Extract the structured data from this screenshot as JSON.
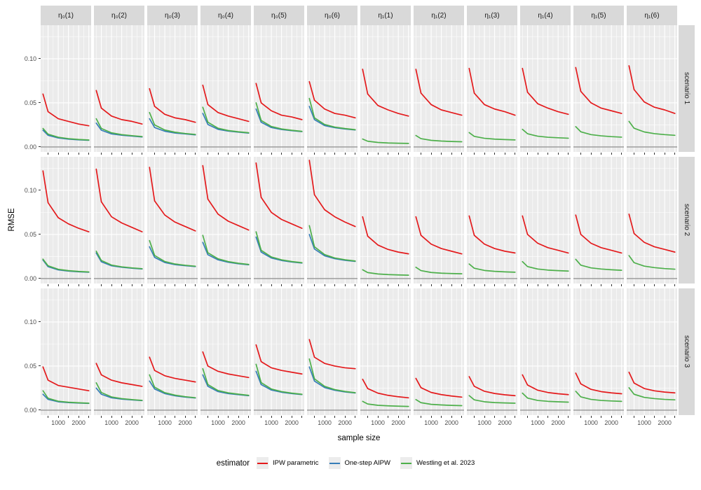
{
  "legend": {
    "title": "estimator",
    "entries": [
      {
        "label": "IPW parametric",
        "color": "#E41A1C"
      },
      {
        "label": "One-step AIPW",
        "color": "#377EB8"
      },
      {
        "label": "Westling et al. 2023",
        "color": "#4DAF4A"
      }
    ]
  },
  "chart_data": {
    "type": "line",
    "title": "",
    "xlabel": "sample size",
    "ylabel": "RMSE",
    "x": [
      250,
      500,
      1000,
      1500,
      2000,
      2500
    ],
    "x_range": [
      137,
      2613
    ],
    "y_range": [
      -0.0056,
      0.138
    ],
    "x_ticks": [
      500,
      1000,
      1500,
      2000,
      2500
    ],
    "x_minor": [
      250,
      750,
      1250,
      1750,
      2250
    ],
    "y_major": [
      0,
      0.05,
      0.1
    ],
    "y_minor": [
      0.025,
      0.075,
      0.125
    ],
    "x_tick_labels": [
      {
        "value": 1000,
        "label": "1000"
      },
      {
        "value": 2000,
        "label": "2000"
      }
    ],
    "y_ticks": [
      {
        "value": 0,
        "label": "0.00"
      },
      {
        "value": 0.05,
        "label": "0.05"
      },
      {
        "value": 0.1,
        "label": "0.10"
      }
    ],
    "zero_line": 0,
    "colors": {
      "panel_bg": "#EBEBEB",
      "grid": "#FFFFFF",
      "strip_bg": "#D9D9D9",
      "zero_line": "#808080"
    },
    "facet_cols": [
      "η₀(1)",
      "η₀(2)",
      "η₀(3)",
      "η₀(4)",
      "η₀(5)",
      "η₀(6)",
      "η₁(1)",
      "η₁(2)",
      "η₁(3)",
      "η₁(4)",
      "η₁(5)",
      "η₁(6)"
    ],
    "facet_rows": [
      "scenario 1",
      "scenario 2",
      "scenario 3"
    ],
    "series_meta": {
      "ipw": {
        "label": "IPW parametric",
        "color": "#E41A1C"
      },
      "aipw": {
        "label": "One-step AIPW",
        "color": "#377EB8"
      },
      "westling": {
        "label": "Westling et al. 2023",
        "color": "#4DAF4A"
      }
    },
    "draw_order": [
      "aipw",
      "westling",
      "ipw"
    ],
    "panels": [
      {
        "row": 0,
        "col": 0,
        "ipw": [
          0.06,
          0.04,
          0.032,
          0.029,
          0.026,
          0.024
        ],
        "aipw": [
          0.019,
          0.0132,
          0.0102,
          0.0089,
          0.0081,
          0.0076
        ],
        "westling": [
          0.021,
          0.0145,
          0.011,
          0.0094,
          0.0085,
          0.0079
        ]
      },
      {
        "row": 0,
        "col": 1,
        "ipw": [
          0.064,
          0.044,
          0.035,
          0.031,
          0.029,
          0.026
        ],
        "aipw": [
          0.027,
          0.019,
          0.0148,
          0.0133,
          0.0123,
          0.0113
        ],
        "westling": [
          0.032,
          0.021,
          0.016,
          0.014,
          0.0128,
          0.0118
        ]
      },
      {
        "row": 0,
        "col": 2,
        "ipw": [
          0.066,
          0.046,
          0.037,
          0.033,
          0.031,
          0.028
        ],
        "aipw": [
          0.032,
          0.022,
          0.0178,
          0.0158,
          0.0148,
          0.0137
        ],
        "westling": [
          0.039,
          0.025,
          0.0192,
          0.0167,
          0.0153,
          0.0142
        ]
      },
      {
        "row": 0,
        "col": 3,
        "ipw": [
          0.07,
          0.048,
          0.039,
          0.035,
          0.032,
          0.029
        ],
        "aipw": [
          0.038,
          0.0255,
          0.02,
          0.018,
          0.0168,
          0.0157
        ],
        "westling": [
          0.045,
          0.028,
          0.0212,
          0.0186,
          0.0172,
          0.0161
        ]
      },
      {
        "row": 0,
        "col": 4,
        "ipw": [
          0.072,
          0.05,
          0.041,
          0.036,
          0.034,
          0.031
        ],
        "aipw": [
          0.043,
          0.028,
          0.022,
          0.0198,
          0.0185,
          0.0174
        ],
        "westling": [
          0.05,
          0.03,
          0.0232,
          0.0204,
          0.0189,
          0.0177
        ]
      },
      {
        "row": 0,
        "col": 5,
        "ipw": [
          0.074,
          0.053,
          0.043,
          0.038,
          0.036,
          0.033
        ],
        "aipw": [
          0.046,
          0.031,
          0.0242,
          0.0218,
          0.0204,
          0.0193
        ],
        "westling": [
          0.055,
          0.033,
          0.0255,
          0.0225,
          0.0209,
          0.0196
        ]
      },
      {
        "row": 0,
        "col": 6,
        "ipw": [
          0.088,
          0.06,
          0.047,
          0.042,
          0.038,
          0.035
        ],
        "aipw": null,
        "westling": [
          0.009,
          0.0065,
          0.0051,
          0.0045,
          0.0042,
          0.004
        ]
      },
      {
        "row": 0,
        "col": 7,
        "ipw": [
          0.088,
          0.061,
          0.048,
          0.042,
          0.039,
          0.036
        ],
        "aipw": null,
        "westling": [
          0.013,
          0.0094,
          0.0075,
          0.0067,
          0.0062,
          0.0059
        ]
      },
      {
        "row": 0,
        "col": 8,
        "ipw": [
          0.089,
          0.061,
          0.048,
          0.043,
          0.04,
          0.036
        ],
        "aipw": null,
        "westling": [
          0.0163,
          0.012,
          0.0098,
          0.0089,
          0.0084,
          0.008
        ]
      },
      {
        "row": 0,
        "col": 9,
        "ipw": [
          0.089,
          0.062,
          0.049,
          0.044,
          0.04,
          0.037
        ],
        "aipw": null,
        "westling": [
          0.02,
          0.015,
          0.0122,
          0.011,
          0.0104,
          0.0099
        ]
      },
      {
        "row": 0,
        "col": 10,
        "ipw": [
          0.09,
          0.063,
          0.05,
          0.044,
          0.041,
          0.038
        ],
        "aipw": null,
        "westling": [
          0.023,
          0.0172,
          0.014,
          0.0126,
          0.0117,
          0.0111
        ]
      },
      {
        "row": 0,
        "col": 11,
        "ipw": [
          0.092,
          0.065,
          0.051,
          0.045,
          0.042,
          0.038
        ],
        "aipw": null,
        "westling": [
          0.029,
          0.0212,
          0.017,
          0.0151,
          0.014,
          0.0132
        ]
      },
      {
        "row": 1,
        "col": 0,
        "ipw": [
          0.122,
          0.086,
          0.069,
          0.062,
          0.057,
          0.053
        ],
        "aipw": [
          0.021,
          0.0135,
          0.0098,
          0.0085,
          0.0077,
          0.0072
        ],
        "westling": [
          0.022,
          0.0145,
          0.0105,
          0.009,
          0.0081,
          0.0075
        ]
      },
      {
        "row": 1,
        "col": 1,
        "ipw": [
          0.124,
          0.087,
          0.07,
          0.063,
          0.058,
          0.053
        ],
        "aipw": [
          0.029,
          0.019,
          0.0145,
          0.0128,
          0.0117,
          0.0108
        ],
        "westling": [
          0.031,
          0.0205,
          0.0153,
          0.0133,
          0.0121,
          0.0112
        ]
      },
      {
        "row": 1,
        "col": 2,
        "ipw": [
          0.126,
          0.088,
          0.072,
          0.064,
          0.059,
          0.054
        ],
        "aipw": [
          0.036,
          0.024,
          0.0182,
          0.0158,
          0.0146,
          0.0136
        ],
        "westling": [
          0.043,
          0.0262,
          0.0193,
          0.0165,
          0.0151,
          0.014
        ]
      },
      {
        "row": 1,
        "col": 3,
        "ipw": [
          0.128,
          0.09,
          0.073,
          0.065,
          0.06,
          0.055
        ],
        "aipw": [
          0.041,
          0.027,
          0.0212,
          0.0185,
          0.0168,
          0.0156
        ],
        "westling": [
          0.049,
          0.0292,
          0.0224,
          0.0192,
          0.0173,
          0.016
        ]
      },
      {
        "row": 1,
        "col": 4,
        "ipw": [
          0.131,
          0.092,
          0.075,
          0.067,
          0.062,
          0.057
        ],
        "aipw": [
          0.047,
          0.03,
          0.0233,
          0.0205,
          0.0188,
          0.0176
        ],
        "westling": [
          0.053,
          0.032,
          0.0245,
          0.0212,
          0.0193,
          0.018
        ]
      },
      {
        "row": 1,
        "col": 5,
        "ipw": [
          0.134,
          0.095,
          0.078,
          0.07,
          0.064,
          0.059
        ],
        "aipw": [
          0.05,
          0.0335,
          0.0258,
          0.0225,
          0.0207,
          0.0195
        ],
        "westling": [
          0.06,
          0.036,
          0.0272,
          0.0233,
          0.0213,
          0.0199
        ]
      },
      {
        "row": 1,
        "col": 6,
        "ipw": [
          0.07,
          0.048,
          0.038,
          0.033,
          0.03,
          0.028
        ],
        "aipw": null,
        "westling": [
          0.01,
          0.0068,
          0.0052,
          0.0045,
          0.0041,
          0.0038
        ]
      },
      {
        "row": 1,
        "col": 7,
        "ipw": [
          0.07,
          0.049,
          0.039,
          0.034,
          0.031,
          0.028
        ],
        "aipw": null,
        "westling": [
          0.0128,
          0.009,
          0.0069,
          0.0061,
          0.0057,
          0.0054
        ]
      },
      {
        "row": 1,
        "col": 8,
        "ipw": [
          0.071,
          0.049,
          0.039,
          0.034,
          0.031,
          0.029
        ],
        "aipw": null,
        "westling": [
          0.0165,
          0.0117,
          0.0092,
          0.0082,
          0.0076,
          0.0072
        ]
      },
      {
        "row": 1,
        "col": 9,
        "ipw": [
          0.071,
          0.05,
          0.04,
          0.035,
          0.032,
          0.029
        ],
        "aipw": null,
        "westling": [
          0.0192,
          0.0136,
          0.0108,
          0.0096,
          0.009,
          0.0085
        ]
      },
      {
        "row": 1,
        "col": 10,
        "ipw": [
          0.072,
          0.05,
          0.04,
          0.035,
          0.032,
          0.029
        ],
        "aipw": null,
        "westling": [
          0.0218,
          0.0152,
          0.0121,
          0.0108,
          0.01,
          0.0094
        ]
      },
      {
        "row": 1,
        "col": 11,
        "ipw": [
          0.073,
          0.051,
          0.041,
          0.036,
          0.033,
          0.03
        ],
        "aipw": null,
        "westling": [
          0.026,
          0.018,
          0.0141,
          0.0124,
          0.0113,
          0.0106
        ]
      },
      {
        "row": 2,
        "col": 0,
        "ipw": [
          0.049,
          0.034,
          0.028,
          0.026,
          0.024,
          0.022
        ],
        "aipw": [
          0.018,
          0.0122,
          0.0095,
          0.0086,
          0.0081,
          0.0077
        ],
        "westling": [
          0.022,
          0.0135,
          0.0101,
          0.009,
          0.0084,
          0.0079
        ]
      },
      {
        "row": 2,
        "col": 1,
        "ipw": [
          0.053,
          0.04,
          0.034,
          0.031,
          0.029,
          0.027
        ],
        "aipw": [
          0.025,
          0.018,
          0.014,
          0.0125,
          0.0116,
          0.0108
        ],
        "westling": [
          0.031,
          0.02,
          0.015,
          0.0131,
          0.012,
          0.0111
        ]
      },
      {
        "row": 2,
        "col": 2,
        "ipw": [
          0.06,
          0.045,
          0.039,
          0.036,
          0.034,
          0.032
        ],
        "aipw": [
          0.033,
          0.024,
          0.0188,
          0.0163,
          0.0148,
          0.0138
        ],
        "westling": [
          0.04,
          0.026,
          0.0198,
          0.017,
          0.0153,
          0.0141
        ]
      },
      {
        "row": 2,
        "col": 3,
        "ipw": [
          0.066,
          0.05,
          0.044,
          0.041,
          0.039,
          0.037
        ],
        "aipw": [
          0.04,
          0.027,
          0.021,
          0.0188,
          0.0176,
          0.0164
        ],
        "westling": [
          0.047,
          0.029,
          0.0222,
          0.0196,
          0.0181,
          0.0168
        ]
      },
      {
        "row": 2,
        "col": 4,
        "ipw": [
          0.074,
          0.055,
          0.048,
          0.045,
          0.043,
          0.041
        ],
        "aipw": [
          0.044,
          0.029,
          0.0228,
          0.0203,
          0.0188,
          0.0177
        ],
        "westling": [
          0.052,
          0.0312,
          0.024,
          0.021,
          0.0193,
          0.018
        ]
      },
      {
        "row": 2,
        "col": 5,
        "ipw": [
          0.08,
          0.06,
          0.053,
          0.05,
          0.048,
          0.047
        ],
        "aipw": [
          0.049,
          0.033,
          0.0256,
          0.0225,
          0.0207,
          0.0195
        ],
        "westling": [
          0.058,
          0.0355,
          0.027,
          0.0233,
          0.0212,
          0.0198
        ]
      },
      {
        "row": 2,
        "col": 6,
        "ipw": [
          0.035,
          0.0245,
          0.0193,
          0.0168,
          0.0152,
          0.014
        ],
        "aipw": null,
        "westling": [
          0.01,
          0.007,
          0.0055,
          0.0049,
          0.0045,
          0.0042
        ]
      },
      {
        "row": 2,
        "col": 7,
        "ipw": [
          0.036,
          0.0255,
          0.0201,
          0.0176,
          0.016,
          0.0148
        ],
        "aipw": null,
        "westling": [
          0.012,
          0.0085,
          0.0066,
          0.0059,
          0.0054,
          0.0051
        ]
      },
      {
        "row": 2,
        "col": 8,
        "ipw": [
          0.038,
          0.027,
          0.0214,
          0.0189,
          0.0174,
          0.0164
        ],
        "aipw": null,
        "westling": [
          0.0165,
          0.0117,
          0.0095,
          0.0086,
          0.0082,
          0.0079
        ]
      },
      {
        "row": 2,
        "col": 9,
        "ipw": [
          0.04,
          0.0285,
          0.0226,
          0.02,
          0.0186,
          0.0176
        ],
        "aipw": null,
        "westling": [
          0.0193,
          0.0137,
          0.011,
          0.01,
          0.0095,
          0.0091
        ]
      },
      {
        "row": 2,
        "col": 10,
        "ipw": [
          0.042,
          0.0298,
          0.0236,
          0.021,
          0.0196,
          0.0186
        ],
        "aipw": null,
        "westling": [
          0.0214,
          0.0151,
          0.0122,
          0.011,
          0.0104,
          0.01
        ]
      },
      {
        "row": 2,
        "col": 11,
        "ipw": [
          0.043,
          0.0307,
          0.0245,
          0.0219,
          0.0205,
          0.0196
        ],
        "aipw": null,
        "westling": [
          0.0254,
          0.018,
          0.0145,
          0.0131,
          0.0122,
          0.0117
        ]
      }
    ]
  }
}
